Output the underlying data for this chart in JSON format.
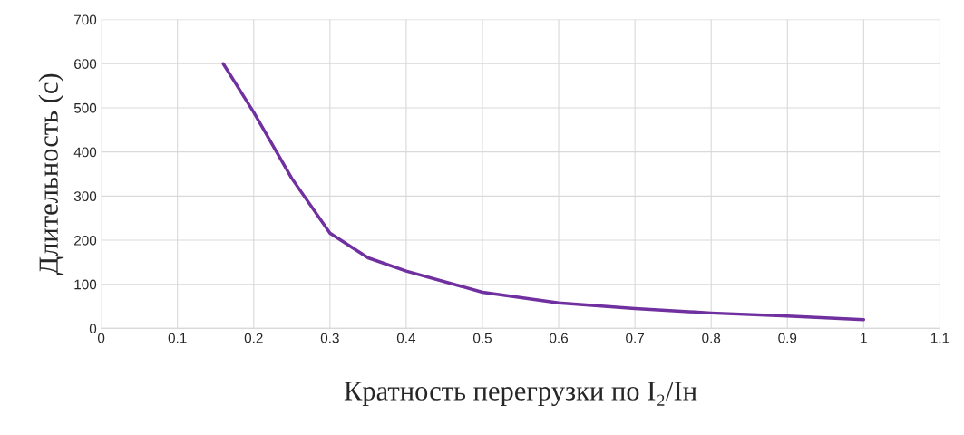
{
  "chart_data": {
    "type": "line",
    "xlabel": "Кратность перегрузки по I₂/Iн",
    "ylabel": "Длительность (с)",
    "x": [
      0.16,
      0.2,
      0.25,
      0.3,
      0.35,
      0.4,
      0.5,
      0.6,
      0.7,
      0.8,
      0.9,
      1.0
    ],
    "series": [
      {
        "color": "#7030a0",
        "values": [
          600,
          490,
          340,
          216,
          160,
          130,
          82,
          58,
          45,
          35,
          28,
          20
        ]
      }
    ],
    "xlim": [
      0,
      1.1
    ],
    "xticks": [
      0,
      0.1,
      0.2,
      0.3,
      0.4,
      0.5,
      0.6,
      0.7,
      0.8,
      0.9,
      1,
      1.1
    ],
    "ylim": [
      0,
      700
    ],
    "yticks": [
      0,
      100,
      200,
      300,
      400,
      500,
      600,
      700
    ],
    "grid": true
  }
}
